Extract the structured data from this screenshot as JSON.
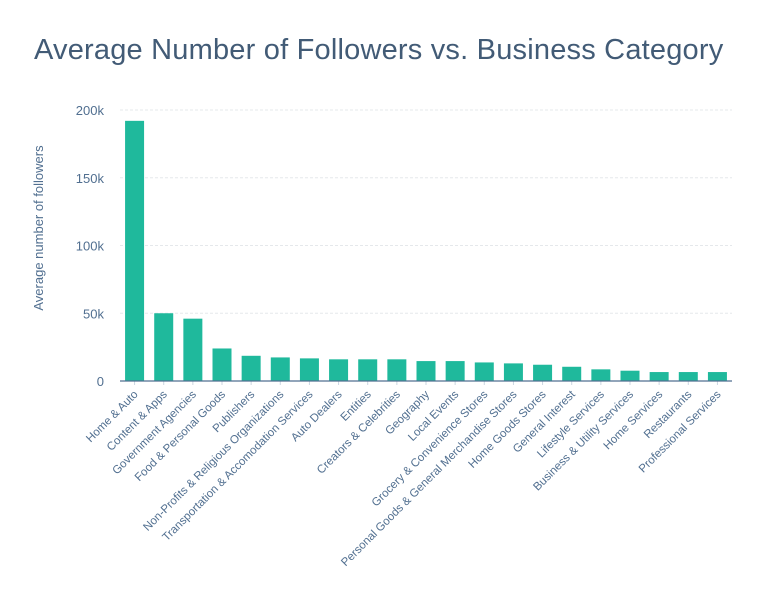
{
  "chart_data": {
    "type": "bar",
    "title": "Average Number of Followers vs. Business Category",
    "xlabel": "",
    "ylabel": "Average number of followers",
    "ylim": [
      0,
      200000
    ],
    "yticks": [
      0,
      50000,
      100000,
      150000,
      200000
    ],
    "ytick_labels": [
      "0",
      "50k",
      "100k",
      "150k",
      "200k"
    ],
    "grid": true,
    "bar_color": "#1fb99c",
    "categories": [
      "Home & Auto",
      "Content & Apps",
      "Government Agencies",
      "Food & Personal Goods",
      "Publishers",
      "Non-Profits & Religious Organizations",
      "Transportation & Accomodation Services",
      "Auto Dealers",
      "Entities",
      "Creators & Celebrities",
      "Geography",
      "Local Events",
      "Grocery & Convenience Stores",
      "Personal Goods & General Merchandise Stores",
      "Home Goods Stores",
      "General Interest",
      "Lifestyle Services",
      "Business & Utility Services",
      "Home Services",
      "Restaurants",
      "Professional Services"
    ],
    "values": [
      192000,
      50000,
      46000,
      24000,
      18600,
      17400,
      16700,
      16000,
      16000,
      16000,
      14700,
      14700,
      13700,
      13000,
      12000,
      10500,
      8600,
      7600,
      6600,
      6600,
      6600
    ]
  }
}
